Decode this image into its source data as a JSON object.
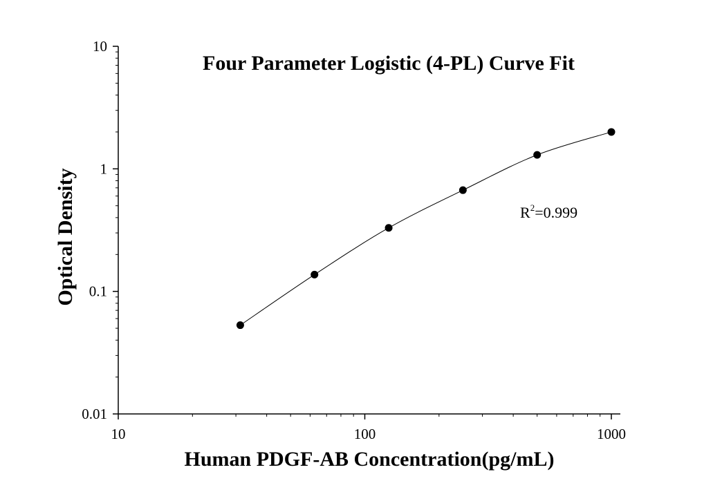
{
  "chart_data": {
    "type": "scatter",
    "title": "Four Parameter Logistic (4-PL) Curve Fit",
    "xlabel": "Human PDGF-AB Concentration(pg/mL)",
    "ylabel": "Optical Density",
    "x_scale": "log",
    "y_scale": "log",
    "xlim": [
      10,
      1000
    ],
    "ylim": [
      0.01,
      10
    ],
    "x_ticks": [
      {
        "value": 10,
        "label": "10"
      },
      {
        "value": 100,
        "label": "100"
      },
      {
        "value": 1000,
        "label": "1000"
      }
    ],
    "y_ticks": [
      {
        "value": 0.01,
        "label": "0.01"
      },
      {
        "value": 0.1,
        "label": "0.1"
      },
      {
        "value": 1,
        "label": "1"
      },
      {
        "value": 10,
        "label": "10"
      }
    ],
    "series": [
      {
        "points": [
          {
            "x": 31.25,
            "y": 0.053
          },
          {
            "x": 62.5,
            "y": 0.137
          },
          {
            "x": 125,
            "y": 0.33
          },
          {
            "x": 250,
            "y": 0.67
          },
          {
            "x": 500,
            "y": 1.3
          },
          {
            "x": 1000,
            "y": 2.0
          }
        ]
      }
    ],
    "fit_curve": {
      "model": "4PL",
      "x_range": [
        31.25,
        1000
      ]
    },
    "annotation": {
      "base": "R",
      "superscript": "2",
      "value": "=0.999"
    },
    "grid": false,
    "colors": {
      "marker": "#000000",
      "curve": "#000000",
      "axis": "#000000"
    }
  }
}
